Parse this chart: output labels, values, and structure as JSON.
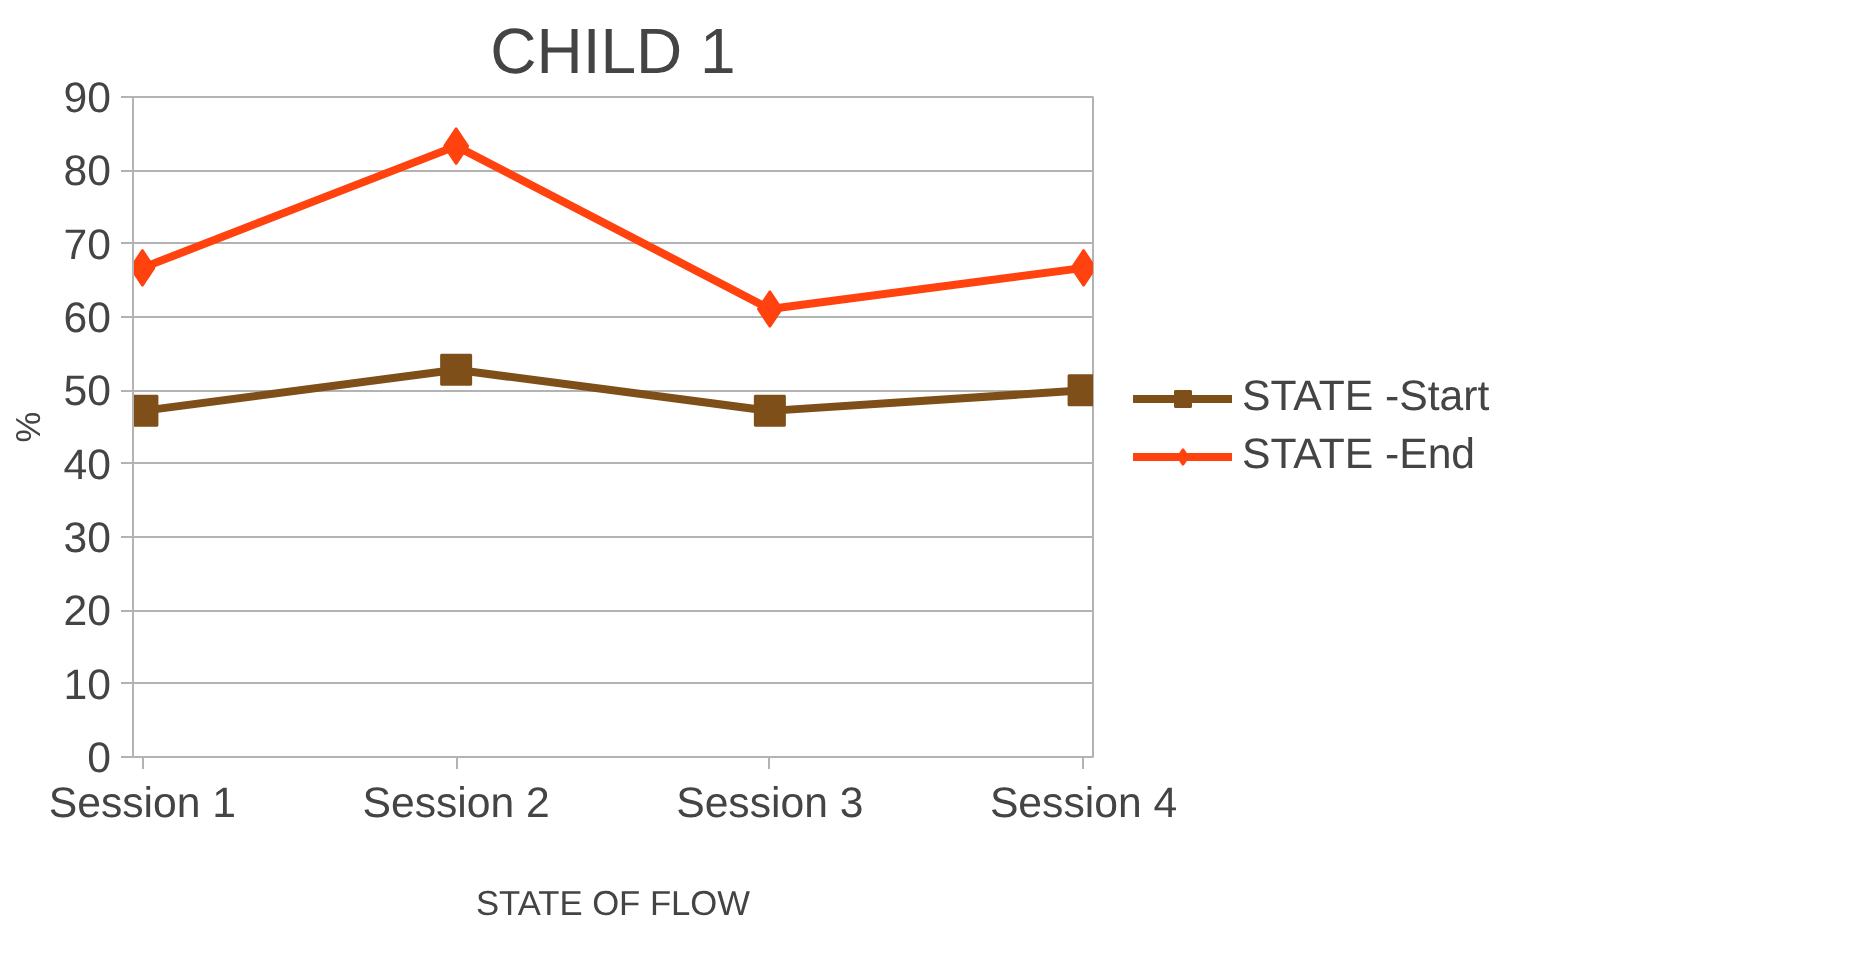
{
  "chart_data": {
    "type": "line",
    "title": "CHILD 1",
    "xlabel": "STATE OF FLOW",
    "ylabel": "%",
    "categories": [
      "Session 1",
      "Session 2",
      "Session 3",
      "Session 4"
    ],
    "series": [
      {
        "name": "STATE -Start",
        "color": "#7f4f1a",
        "values": [
          47.2,
          52.8,
          47.2,
          50
        ],
        "marker": "square"
      },
      {
        "name": "STATE -End",
        "color": "#ff420e",
        "values": [
          66.7,
          83.3,
          61.1,
          66.7
        ],
        "marker": "diamond"
      }
    ],
    "ylim": [
      0,
      90
    ],
    "yticks": [
      0,
      10,
      20,
      30,
      40,
      50,
      60,
      70,
      80,
      90
    ],
    "grid": "y",
    "legend": "right",
    "line_style": "solid"
  }
}
